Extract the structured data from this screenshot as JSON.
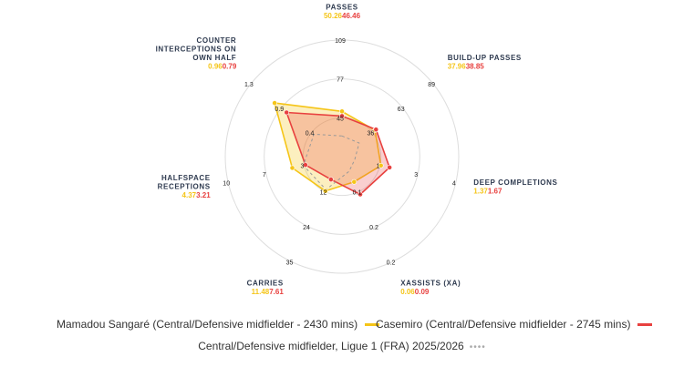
{
  "chart_data": {
    "type": "radar",
    "axes": [
      {
        "name": "PASSES",
        "label_lines": [
          "PASSES"
        ],
        "ticks": [
          "45",
          "77",
          "109"
        ],
        "min": 13,
        "max": 109,
        "values": [
          50.26,
          46.46
        ],
        "value_labels": [
          "50.26",
          "46.46"
        ]
      },
      {
        "name": "BUILD-UP PASSES",
        "label_lines": [
          "BUILD-UP PASSES"
        ],
        "ticks": [
          "36",
          "63",
          "89"
        ],
        "min": 9,
        "max": 89,
        "values": [
          37.96,
          38.85
        ],
        "value_labels": [
          "37.96",
          "38.85"
        ]
      },
      {
        "name": "DEEP COMPLETIONS",
        "label_lines": [
          "DEEP COMPLETIONS"
        ],
        "ticks": [
          "1",
          "3",
          "4"
        ],
        "min": 0,
        "max": 4,
        "values": [
          1.37,
          1.67
        ],
        "value_labels": [
          "1.37",
          "1.67"
        ]
      },
      {
        "name": "XASSISTS (XA)",
        "label_lines": [
          "XASSISTS (XA)"
        ],
        "ticks": [
          "0.1",
          "0.2",
          "0.2"
        ],
        "min": 0,
        "max": 0.25,
        "values": [
          0.06,
          0.09
        ],
        "value_labels": [
          "0.06",
          "0.09"
        ]
      },
      {
        "name": "CARRIES",
        "label_lines": [
          "CARRIES"
        ],
        "ticks": [
          "12",
          "24",
          "35"
        ],
        "min": 0,
        "max": 35,
        "values": [
          11.48,
          7.61
        ],
        "value_labels": [
          "11.48",
          "7.61"
        ]
      },
      {
        "name": "HALFSPACE RECEPTIONS",
        "label_lines": [
          "HALFSPACE",
          "RECEPTIONS"
        ],
        "ticks": [
          "3",
          "7",
          "10"
        ],
        "min": 0,
        "max": 10,
        "values": [
          4.37,
          3.21
        ],
        "value_labels": [
          "4.37",
          "3.21"
        ]
      },
      {
        "name": "COUNTER INTERCEPTIONS ON OWN HALF",
        "label_lines": [
          "COUNTER",
          "INTERCEPTIONS ON",
          "OWN HALF"
        ],
        "ticks": [
          "0.4",
          "0.9",
          "1.3"
        ],
        "min": 0,
        "max": 1.3,
        "values": [
          0.96,
          0.79
        ],
        "value_labels": [
          "0.96",
          "0.79"
        ]
      }
    ],
    "series": [
      {
        "name": "Mamadou Sangaré (Central/Defensive midfielder - 2430 mins)",
        "color": "#f5c518",
        "fill": "rgba(245,197,24,0.28)"
      },
      {
        "name": "Casemiro (Central/Defensive midfielder - 2745 mins)",
        "color": "#e8413f",
        "fill": "rgba(232,65,63,0.25)"
      }
    ],
    "reference": {
      "name": "Central/Defensive midfielder, Ligue 1 (FRA) 2025/2026",
      "color": "#aaaaaa",
      "values": [
        30,
        24,
        0.45,
        0.035,
        11,
        3.4,
        0.4
      ]
    }
  }
}
